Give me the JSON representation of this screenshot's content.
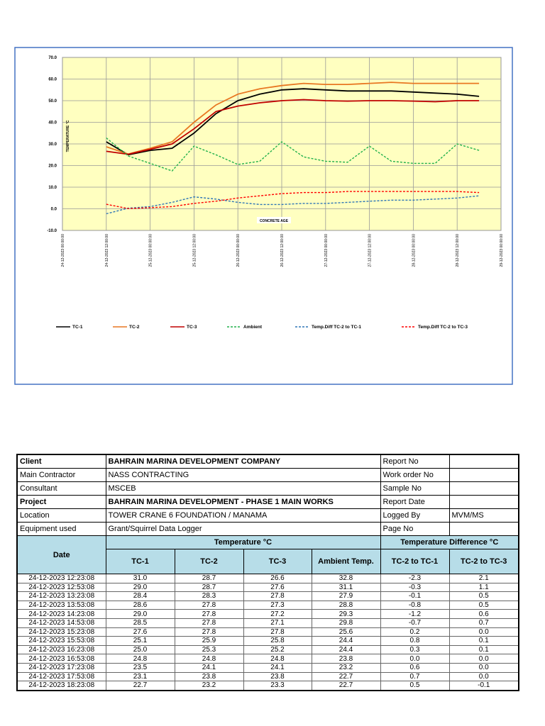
{
  "chart_data": {
    "type": "line",
    "y_label": "TEMPERATURE °C",
    "x_label": "CONCRETE AGE",
    "x": [
      "24-12-2023 12:00:00",
      "24-12-2023 18:00:00",
      "25-12-2023 00:00:00",
      "25-12-2023 06:00:00",
      "25-12-2023 12:00:00",
      "25-12-2023 18:00:00",
      "26-12-2023 00:00:00",
      "26-12-2023 06:00:00",
      "26-12-2023 12:00:00",
      "26-12-2023 18:00:00",
      "27-12-2023 00:00:00",
      "27-12-2023 06:00:00",
      "27-12-2023 12:00:00",
      "27-12-2023 18:00:00",
      "28-12-2023 00:00:00",
      "28-12-2023 06:00:00",
      "28-12-2023 12:00:00",
      "28-12-2023 18:00:00"
    ],
    "xlim": [
      "24-12-2023 00:00:00",
      "29-12-2023 00:00:00"
    ],
    "xticks": [
      "24-12-2023 00:00:00",
      "24-12-2023 12:00:00",
      "25-12-2023 00:00:00",
      "25-12-2023 12:00:00",
      "26-12-2023 00:00:00",
      "26-12-2023 12:00:00",
      "27-12-2023 00:00:00",
      "27-12-2023 12:00:00",
      "28-12-2023 00:00:00",
      "28-12-2023 12:00:00",
      "29-12-2023 00:00:00"
    ],
    "ylim": [
      -10,
      70
    ],
    "yticks": [
      {
        "value": -10,
        "label": "-10.0"
      },
      {
        "value": 0,
        "label": "0.0"
      },
      {
        "value": 10,
        "label": "10.0"
      },
      {
        "value": 20,
        "label": "20.0"
      },
      {
        "value": 30,
        "label": "30.0"
      },
      {
        "value": 40,
        "label": "40.0"
      },
      {
        "value": 50,
        "label": "50.0"
      },
      {
        "value": 60,
        "label": "60.0"
      },
      {
        "value": 70,
        "label": "70.0"
      }
    ],
    "grid": true,
    "series": [
      {
        "name": "TC-1",
        "color": "#000000",
        "dashed": false,
        "values": [
          31,
          25,
          27,
          28,
          35,
          44,
          50,
          53,
          55,
          55.5,
          55,
          54.5,
          54.5,
          54.5,
          54,
          53.5,
          53,
          52
        ]
      },
      {
        "name": "TC-2",
        "color": "#e87722",
        "dashed": false,
        "values": [
          28.7,
          25.3,
          28,
          31,
          40,
          48,
          53,
          55.5,
          57,
          58,
          57.5,
          57.5,
          58,
          58.5,
          58,
          58,
          58,
          58
        ]
      },
      {
        "name": "TC-3",
        "color": "#c00000",
        "dashed": false,
        "values": [
          26.6,
          25.2,
          27.5,
          30,
          37,
          45,
          47.5,
          49,
          50,
          50.5,
          50,
          49.8,
          50,
          50,
          49.8,
          49.5,
          50,
          50
        ]
      },
      {
        "name": "Ambient",
        "color": "#22b14c",
        "dashed": true,
        "values": [
          32.8,
          24.4,
          21,
          17.5,
          29,
          25,
          20.5,
          22,
          31,
          24,
          22,
          21.5,
          29,
          22,
          21,
          21,
          30,
          27
        ]
      },
      {
        "name": "Temp.Diff TC-2  to TC-1",
        "color": "#2e75b6",
        "dashed": true,
        "values": [
          -2.3,
          0.3,
          1,
          3,
          5.5,
          4.5,
          3,
          2,
          2,
          2.5,
          2.5,
          3,
          3.5,
          4,
          4,
          4.5,
          5,
          6
        ]
      },
      {
        "name": "Temp.Diff TC-2  to TC-3",
        "color": "#ff0000",
        "dashed": true,
        "values": [
          2.1,
          0.1,
          0.5,
          1,
          2.5,
          3.5,
          5,
          6,
          7,
          7.5,
          7.5,
          8,
          8,
          8,
          8,
          8,
          8,
          7.5
        ]
      }
    ]
  },
  "info": [
    {
      "label": "Client",
      "value": "BAHRAIN MARINA DEVELOPMENT COMPANY",
      "label2": "Report No",
      "bold": true
    },
    {
      "label": "Main Contractor",
      "value": "NASS CONTRACTING",
      "label2": "Work order No",
      "bold": false
    },
    {
      "label": "Consultant",
      "value": "MSCEB",
      "label2": "Sample No",
      "bold": false
    },
    {
      "label": "Project",
      "value": "BAHRAIN MARINA DEVELOPMENT - PHASE 1 MAIN WORKS",
      "label2": "Report Date",
      "bold": true
    },
    {
      "label": "Location",
      "value": "TOWER CRANE 6 FOUNDATION / MANAMA",
      "label2": "Logged By",
      "value2": "MVM/MS",
      "bold": false
    },
    {
      "label": "Equipment used",
      "value": "Grant/Squirrel Data Logger",
      "label2": "Page No",
      "bold": false
    }
  ],
  "table": {
    "date_header": "Date",
    "temp_group": "Temperature °C",
    "diff_group": "Temperature Difference °C",
    "columns": [
      "TC-1",
      "TC-2",
      "TC-3",
      "Ambient Temp.",
      "TC-2 to TC-1",
      "TC-2 to TC-3"
    ],
    "rows": [
      [
        "24-12-2023 12:23:08",
        "31.0",
        "28.7",
        "26.6",
        "32.8",
        "-2.3",
        "2.1"
      ],
      [
        "24-12-2023 12:53:08",
        "29.0",
        "28.7",
        "27.6",
        "31.1",
        "-0.3",
        "1.1"
      ],
      [
        "24-12-2023 13:23:08",
        "28.4",
        "28.3",
        "27.8",
        "27.9",
        "-0.1",
        "0.5"
      ],
      [
        "24-12-2023 13:53:08",
        "28.6",
        "27.8",
        "27.3",
        "28.8",
        "-0.8",
        "0.5"
      ],
      [
        "24-12-2023 14:23:08",
        "29.0",
        "27.8",
        "27.2",
        "29.3",
        "-1.2",
        "0.6"
      ],
      [
        "24-12-2023 14:53:08",
        "28.5",
        "27.8",
        "27.1",
        "29.8",
        "-0.7",
        "0.7"
      ],
      [
        "24-12-2023 15:23:08",
        "27.6",
        "27.8",
        "27.8",
        "25.6",
        "0.2",
        "0.0"
      ],
      [
        "24-12-2023 15:53:08",
        "25.1",
        "25.9",
        "25.8",
        "24.4",
        "0.8",
        "0.1"
      ],
      [
        "24-12-2023 16:23:08",
        "25.0",
        "25.3",
        "25.2",
        "24.4",
        "0.3",
        "0.1"
      ],
      [
        "24-12-2023 16:53:08",
        "24.8",
        "24.8",
        "24.8",
        "23.8",
        "0.0",
        "0.0"
      ],
      [
        "24-12-2023 17:23:08",
        "23.5",
        "24.1",
        "24.1",
        "23.2",
        "0.6",
        "0.0"
      ],
      [
        "24-12-2023 17:53:08",
        "23.1",
        "23.8",
        "23.8",
        "22.7",
        "0.7",
        "0.0"
      ],
      [
        "24-12-2023 18:23:08",
        "22.7",
        "23.2",
        "23.3",
        "22.7",
        "0.5",
        "-0.1"
      ]
    ]
  }
}
